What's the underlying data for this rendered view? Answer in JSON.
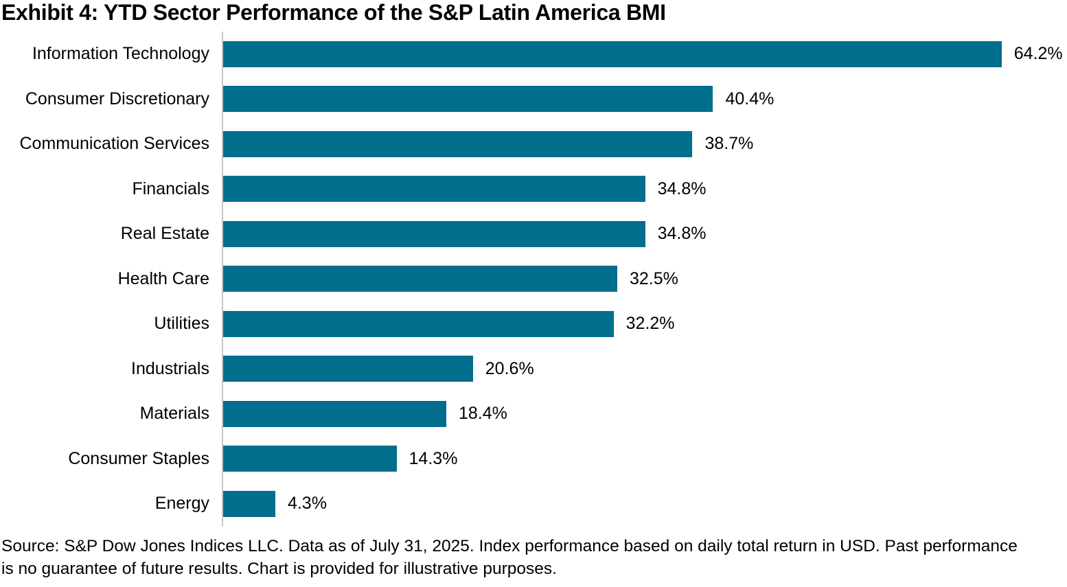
{
  "title": "Exhibit 4: YTD Sector Performance of the S&P Latin America BMI",
  "source_note": "Source: S&P Dow Jones Indices LLC. Data as of July 31, 2025. Index performance based on daily total return in USD. Past performance is no guarantee of future results. Chart is provided for illustrative purposes.",
  "colors": {
    "bar": "#006E8C",
    "axis_line": "#C6C6C6",
    "text": "#000000"
  },
  "chart_data": {
    "type": "bar",
    "orientation": "horizontal",
    "title": "Exhibit 4: YTD Sector Performance of the S&P Latin America BMI",
    "xlabel": "",
    "ylabel": "",
    "categories": [
      "Information Technology",
      "Consumer Discretionary",
      "Communication Services",
      "Financials",
      "Real Estate",
      "Health Care",
      "Utilities",
      "Industrials",
      "Materials",
      "Consumer Staples",
      "Energy"
    ],
    "values": [
      64.2,
      40.4,
      38.7,
      34.8,
      34.8,
      32.5,
      32.2,
      20.6,
      18.4,
      14.3,
      4.3
    ],
    "value_labels": [
      "64.2%",
      "40.4%",
      "38.7%",
      "34.8%",
      "34.8%",
      "32.5%",
      "32.2%",
      "20.6%",
      "18.4%",
      "14.3%",
      "4.3%"
    ],
    "xlim": [
      0,
      69.6
    ],
    "grid": false,
    "legend": "none",
    "data_labels": "end-of-bar"
  }
}
